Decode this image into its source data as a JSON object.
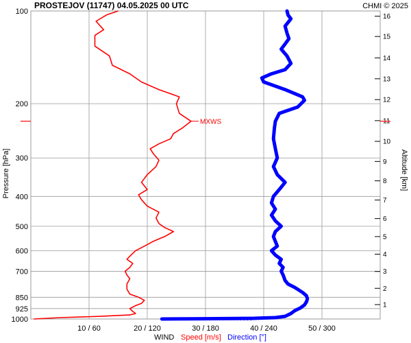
{
  "chart_data": {
    "type": "line",
    "title": "PROSTEJOV (11747)    04.05.2025 00 UTC",
    "credit": "CHMI © 2025",
    "ylabel": "Pressure [hPa]",
    "y2label": "Altitude [km]",
    "legend": {
      "wind": "WIND",
      "speed": "Speed [m/s]",
      "direction": "Direction [°]"
    },
    "annotation": {
      "label": "MXWS",
      "pressure": 228
    },
    "colors": {
      "speed": "#ff0000",
      "direction": "#0000ff",
      "credit": "#ff0000",
      "grid": "#999999"
    },
    "pressure_ticks": [
      {
        "p": 100,
        "label": "100"
      },
      {
        "p": 200,
        "label": "200"
      },
      {
        "p": 300,
        "label": "300"
      },
      {
        "p": 400,
        "label": "400"
      },
      {
        "p": 500,
        "label": "500"
      },
      {
        "p": 600,
        "label": "600"
      },
      {
        "p": 700,
        "label": "700"
      },
      {
        "p": 850,
        "label": "850"
      },
      {
        "p": 925,
        "label": "925"
      },
      {
        "p": 1000,
        "label": "1000"
      }
    ],
    "pressure_range": [
      100,
      1000
    ],
    "x_ticks": [
      {
        "speed": 10,
        "label": "10 / 60"
      },
      {
        "speed": 20,
        "label": "20 / 120"
      },
      {
        "speed": 30,
        "label": "30 / 180"
      },
      {
        "speed": 40,
        "label": "40 / 240"
      },
      {
        "speed": 50,
        "label": "50 / 300"
      }
    ],
    "speed_range": [
      0,
      60
    ],
    "direction_range": [
      0,
      360
    ],
    "altitude_ticks": [
      {
        "km": 1,
        "p": 898,
        "label": "1"
      },
      {
        "km": 2,
        "p": 795,
        "label": "2"
      },
      {
        "km": 3,
        "p": 701,
        "label": "3"
      },
      {
        "km": 4,
        "p": 616,
        "label": "4"
      },
      {
        "km": 5,
        "p": 540,
        "label": "5"
      },
      {
        "km": 6,
        "p": 472,
        "label": "6"
      },
      {
        "km": 7,
        "p": 411,
        "label": "7"
      },
      {
        "km": 8,
        "p": 356,
        "label": "8"
      },
      {
        "km": 9,
        "p": 308,
        "label": "9"
      },
      {
        "km": 10,
        "p": 265,
        "label": "10"
      },
      {
        "km": 11,
        "p": 227,
        "label": "11"
      },
      {
        "km": 12,
        "p": 194,
        "label": "12"
      },
      {
        "km": 13,
        "p": 166,
        "label": "13"
      },
      {
        "km": 14,
        "p": 142,
        "label": "14"
      },
      {
        "km": 15,
        "p": 121,
        "label": "15"
      },
      {
        "km": 16,
        "p": 104,
        "label": "16"
      }
    ],
    "series": [
      {
        "name": "Speed [m/s]",
        "points": [
          [
            1000,
            0.5
          ],
          [
            990,
            5
          ],
          [
            980,
            12
          ],
          [
            970,
            17
          ],
          [
            960,
            18
          ],
          [
            945,
            17.5
          ],
          [
            925,
            17
          ],
          [
            905,
            18
          ],
          [
            890,
            19
          ],
          [
            870,
            19.5
          ],
          [
            850,
            18.5
          ],
          [
            830,
            17
          ],
          [
            800,
            16.5
          ],
          [
            770,
            16.5
          ],
          [
            740,
            17
          ],
          [
            720,
            16.5
          ],
          [
            700,
            16.2
          ],
          [
            680,
            17
          ],
          [
            660,
            17.5
          ],
          [
            640,
            16.5
          ],
          [
            620,
            17.2
          ],
          [
            600,
            18
          ],
          [
            580,
            19.5
          ],
          [
            560,
            21
          ],
          [
            540,
            23
          ],
          [
            520,
            24.5
          ],
          [
            505,
            23
          ],
          [
            490,
            22
          ],
          [
            470,
            21.5
          ],
          [
            450,
            22
          ],
          [
            430,
            20
          ],
          [
            410,
            19
          ],
          [
            395,
            18.5
          ],
          [
            380,
            20
          ],
          [
            360,
            19
          ],
          [
            340,
            20
          ],
          [
            320,
            21.5
          ],
          [
            305,
            22
          ],
          [
            290,
            21
          ],
          [
            280,
            20.5
          ],
          [
            270,
            22
          ],
          [
            260,
            24
          ],
          [
            250,
            24.5
          ],
          [
            240,
            26
          ],
          [
            228,
            27.5
          ],
          [
            215,
            25.5
          ],
          [
            200,
            25
          ],
          [
            190,
            25.5
          ],
          [
            180,
            22
          ],
          [
            170,
            19
          ],
          [
            160,
            17
          ],
          [
            150,
            14
          ],
          [
            140,
            13.5
          ],
          [
            130,
            11
          ],
          [
            120,
            11
          ],
          [
            115,
            12.5
          ],
          [
            108,
            11.2
          ],
          [
            103,
            13
          ],
          [
            100,
            15
          ]
        ]
      },
      {
        "name": "Direction [°]",
        "points": [
          [
            1000,
            135
          ],
          [
            998,
            180
          ],
          [
            995,
            230
          ],
          [
            990,
            252
          ],
          [
            980,
            262
          ],
          [
            960,
            268
          ],
          [
            940,
            272
          ],
          [
            920,
            278
          ],
          [
            900,
            282
          ],
          [
            880,
            284
          ],
          [
            860,
            285
          ],
          [
            840,
            284
          ],
          [
            820,
            280
          ],
          [
            790,
            272
          ],
          [
            770,
            265
          ],
          [
            750,
            262
          ],
          [
            720,
            260
          ],
          [
            700,
            258
          ],
          [
            680,
            260
          ],
          [
            660,
            256
          ],
          [
            640,
            258
          ],
          [
            620,
            252
          ],
          [
            600,
            248
          ],
          [
            580,
            254
          ],
          [
            560,
            252
          ],
          [
            540,
            250
          ],
          [
            520,
            252
          ],
          [
            500,
            258
          ],
          [
            480,
            252
          ],
          [
            460,
            248
          ],
          [
            440,
            252
          ],
          [
            420,
            248
          ],
          [
            400,
            250
          ],
          [
            380,
            256
          ],
          [
            360,
            262
          ],
          [
            340,
            254
          ],
          [
            320,
            250
          ],
          [
            300,
            254
          ],
          [
            280,
            252
          ],
          [
            260,
            250
          ],
          [
            240,
            251
          ],
          [
            228,
            252
          ],
          [
            215,
            256
          ],
          [
            205,
            275
          ],
          [
            195,
            282
          ],
          [
            190,
            280
          ],
          [
            180,
            262
          ],
          [
            170,
            240
          ],
          [
            165,
            238
          ],
          [
            160,
            248
          ],
          [
            155,
            262
          ],
          [
            148,
            268
          ],
          [
            140,
            264
          ],
          [
            133,
            258
          ],
          [
            128,
            262
          ],
          [
            123,
            266
          ],
          [
            118,
            264
          ],
          [
            112,
            262
          ],
          [
            106,
            268
          ],
          [
            103,
            265
          ],
          [
            100,
            264
          ]
        ]
      }
    ]
  }
}
